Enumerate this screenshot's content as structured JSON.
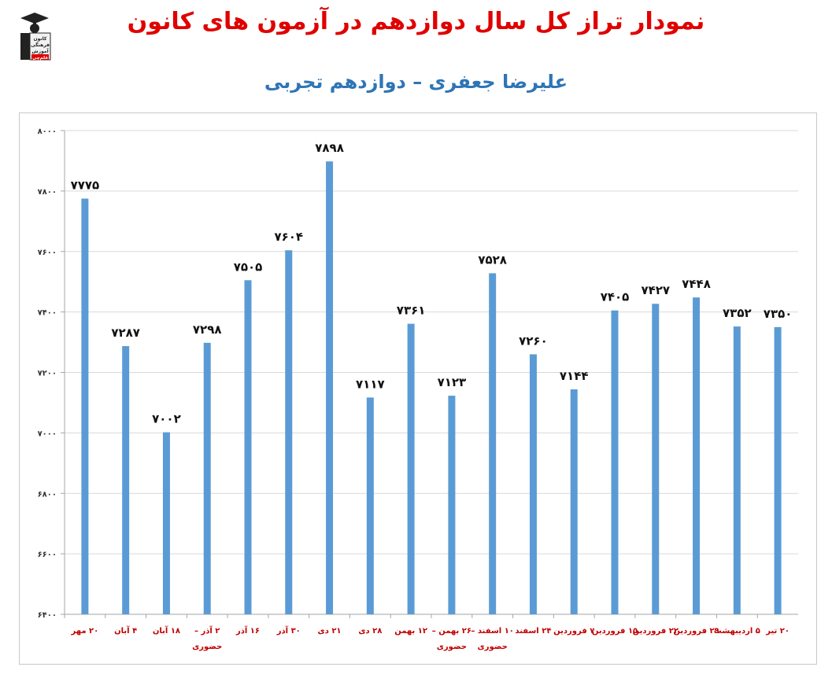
{
  "logo": {
    "line1": "کانون",
    "line2": "فرهنگی",
    "line3": "آموزش",
    "line4": "قلم‌چی"
  },
  "chart_data": {
    "type": "bar",
    "title": "نمودار تراز کل سال دوازدهم در آزمون های کانون",
    "subtitle": "علیرضا جعفری – دوازدهم تجربی",
    "ylim": [
      6400,
      8000
    ],
    "yticks": [
      "۶۴۰۰",
      "۶۶۰۰",
      "۶۸۰۰",
      "۷۰۰۰",
      "۷۲۰۰",
      "۷۴۰۰",
      "۷۶۰۰",
      "۷۸۰۰",
      "۸۰۰۰"
    ],
    "ytick_values": [
      6400,
      6600,
      6800,
      7000,
      7200,
      7400,
      7600,
      7800,
      8000
    ],
    "grid": true,
    "legend": "none",
    "bar_color": "#5b9bd5",
    "categories": [
      [
        "۲۰ مهر"
      ],
      [
        "۴ آبان"
      ],
      [
        "۱۸ آبان"
      ],
      [
        "۲ آذر –",
        "حضوری"
      ],
      [
        "۱۶ آذر"
      ],
      [
        "۳۰ آذر"
      ],
      [
        "۲۱ دی"
      ],
      [
        "۲۸ دی"
      ],
      [
        "۱۲ بهمن"
      ],
      [
        "۲۶ بهمن –",
        "حضوری"
      ],
      [
        "۱۰ اسفند –",
        "حضوری"
      ],
      [
        "۲۴ اسفند"
      ],
      [
        "۷ فروردین"
      ],
      [
        "۱۵ فروردین"
      ],
      [
        "۲۲ فروردین"
      ],
      [
        "۲۹ فروردین"
      ],
      [
        "۵ اردیبهشت"
      ],
      [
        "۲۰ تیر"
      ]
    ],
    "values": [
      7775,
      7287,
      7002,
      7298,
      7505,
      7604,
      7898,
      7117,
      7361,
      7123,
      7528,
      7260,
      7144,
      7405,
      7427,
      7448,
      7352,
      7350
    ],
    "value_labels": [
      "۷۷۷۵",
      "۷۲۸۷",
      "۷۰۰۲",
      "۷۲۹۸",
      "۷۵۰۵",
      "۷۶۰۴",
      "۷۸۹۸",
      "۷۱۱۷",
      "۷۳۶۱",
      "۷۱۲۳",
      "۷۵۲۸",
      "۷۲۶۰",
      "۷۱۴۴",
      "۷۴۰۵",
      "۷۴۲۷",
      "۷۴۴۸",
      "۷۳۵۲",
      "۷۳۵۰"
    ]
  }
}
